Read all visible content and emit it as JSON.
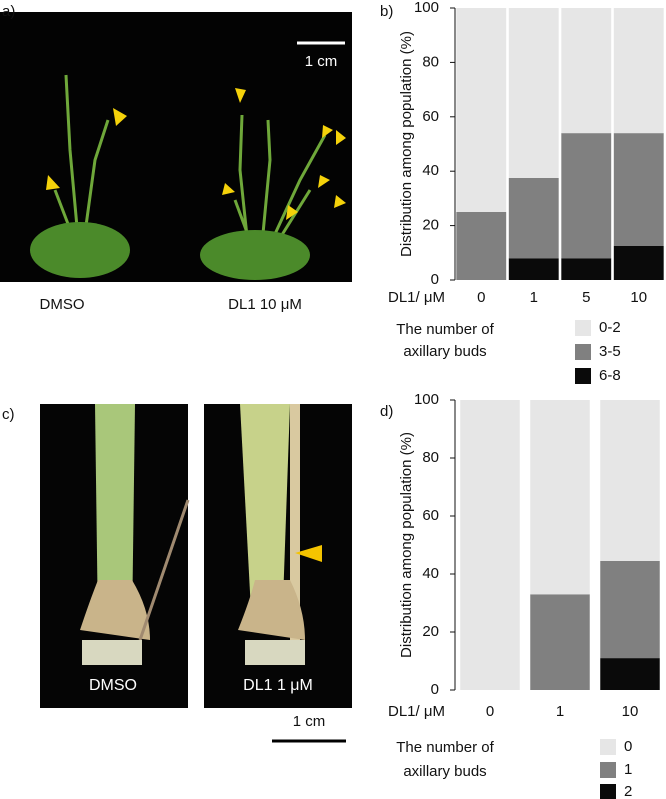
{
  "panel_labels": [
    "a)",
    "b)",
    "c)",
    "d)"
  ],
  "photos": {
    "a": {
      "scale": "1 cm",
      "labels": [
        "DMSO",
        "DL1 10 μM"
      ]
    },
    "c": {
      "scale": "1 cm",
      "labels": [
        "DMSO",
        "DL1 1 μM"
      ]
    }
  },
  "chart_data": [
    {
      "type": "bar",
      "stacked": true,
      "y_label": "Distribution among population (%)",
      "x_label": "DL1/ μM",
      "categories": [
        "0",
        "1",
        "5",
        "10"
      ],
      "series": [
        {
          "name": "0-2",
          "color": "#e6e6e6",
          "values": [
            75,
            62.5,
            46,
            46
          ]
        },
        {
          "name": "3-5",
          "color": "#808080",
          "values": [
            25,
            29.5,
            46,
            41.5
          ]
        },
        {
          "name": "6-8",
          "color": "#0a0a0a",
          "values": [
            0,
            8,
            8,
            12.5
          ]
        }
      ],
      "ylim": [
        0,
        100
      ],
      "yticks": [
        0,
        20,
        40,
        60,
        80,
        100
      ],
      "legend_title": [
        "The number of",
        "axillary buds"
      ]
    },
    {
      "type": "bar",
      "stacked": true,
      "y_label": "Distribution among population (%)",
      "x_label": "DL1/ μM",
      "categories": [
        "0",
        "1",
        "10"
      ],
      "series": [
        {
          "name": "0",
          "color": "#e6e6e6",
          "values": [
            100,
            67,
            55.5
          ]
        },
        {
          "name": "1",
          "color": "#808080",
          "values": [
            0,
            33,
            33.5
          ]
        },
        {
          "name": "2",
          "color": "#0a0a0a",
          "values": [
            0,
            0,
            11
          ]
        }
      ],
      "ylim": [
        0,
        100
      ],
      "yticks": [
        0,
        20,
        40,
        60,
        80,
        100
      ],
      "legend_title": [
        "The number of",
        "axillary buds"
      ]
    }
  ]
}
